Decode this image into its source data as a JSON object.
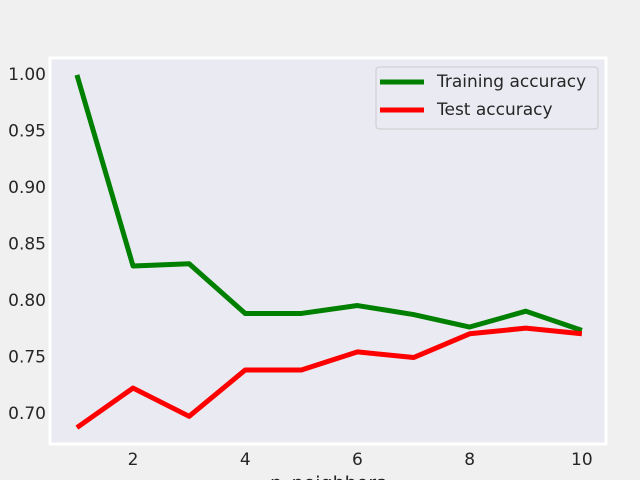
{
  "chart_data": {
    "type": "line",
    "x": [
      1,
      2,
      3,
      4,
      5,
      6,
      7,
      8,
      9,
      10
    ],
    "x_label": "n_neighbors",
    "series": [
      {
        "name": "Training accuracy",
        "color": "#008000",
        "values": [
          1.0,
          0.831,
          0.833,
          0.789,
          0.789,
          0.796,
          0.788,
          0.777,
          0.791,
          0.774
        ]
      },
      {
        "name": "Test accuracy",
        "color": "#ff0000",
        "values": [
          0.688,
          0.723,
          0.698,
          0.739,
          0.739,
          0.755,
          0.75,
          0.771,
          0.776,
          0.771
        ]
      }
    ],
    "xlim": [
      0.52,
      10.43
    ],
    "ylim": [
      0.6735,
      1.015
    ],
    "xticks": [
      2,
      4,
      6,
      8,
      10
    ],
    "yticks": [
      {
        "value": 0.7,
        "label": "0.70"
      },
      {
        "value": 0.75,
        "label": "0.75"
      },
      {
        "value": 0.8,
        "label": "0.80"
      },
      {
        "value": 0.85,
        "label": "0.85"
      },
      {
        "value": 0.9,
        "label": "0.90"
      },
      {
        "value": 0.95,
        "label": "0.95"
      },
      {
        "value": 1.0,
        "label": "1.00"
      }
    ],
    "grid": false,
    "legend": "upper right"
  }
}
